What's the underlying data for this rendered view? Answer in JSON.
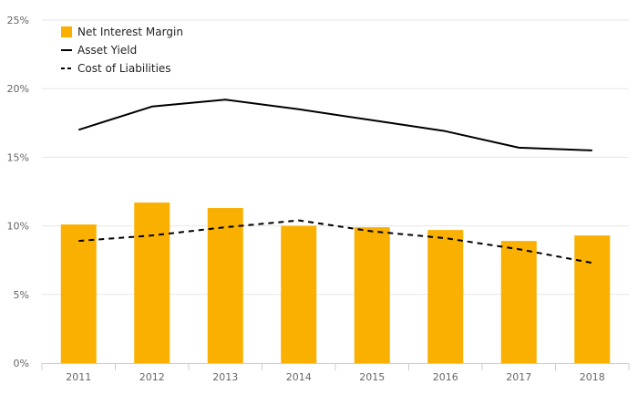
{
  "chart_data": {
    "type": "bar",
    "categories": [
      "2011",
      "2012",
      "2013",
      "2014",
      "2015",
      "2016",
      "2017",
      "2018"
    ],
    "series": [
      {
        "name": "Net Interest Margin",
        "kind": "bar",
        "color": "#f9b000",
        "values": [
          10.1,
          11.7,
          11.3,
          10.0,
          9.9,
          9.7,
          8.9,
          9.3
        ]
      },
      {
        "name": "Asset Yield",
        "kind": "line",
        "color": "#000000",
        "dash": false,
        "values": [
          17.0,
          18.7,
          19.2,
          18.5,
          17.7,
          16.9,
          15.7,
          15.5
        ]
      },
      {
        "name": "Cost of Liabilities",
        "kind": "line",
        "color": "#000000",
        "dash": true,
        "values": [
          8.9,
          9.3,
          9.9,
          10.4,
          9.6,
          9.1,
          8.3,
          7.3
        ]
      }
    ],
    "ylim": [
      0,
      25
    ],
    "yticks": [
      0,
      5,
      10,
      15,
      20,
      25
    ],
    "ytick_format": "%",
    "grid": true,
    "legend": "top-left",
    "title": "",
    "xlabel": "",
    "ylabel": ""
  }
}
